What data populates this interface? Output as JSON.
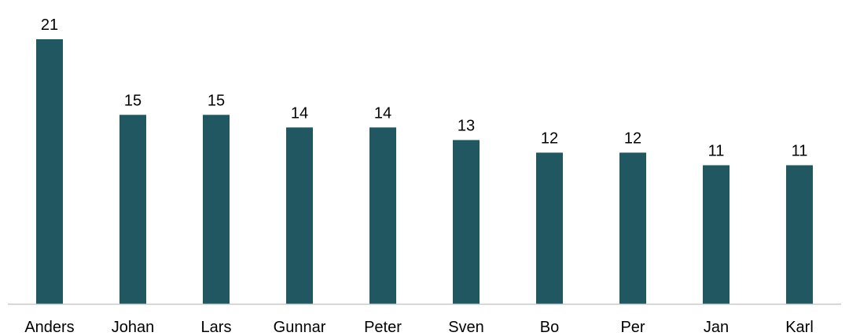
{
  "chart_data": {
    "type": "bar",
    "categories": [
      "Anders",
      "Johan",
      "Lars",
      "Gunnar",
      "Peter",
      "Sven",
      "Bo",
      "Per",
      "Jan",
      "Karl"
    ],
    "values": [
      21,
      15,
      15,
      14,
      14,
      13,
      12,
      12,
      11,
      11
    ],
    "title": "",
    "xlabel": "",
    "ylabel": "",
    "ylim": [
      0,
      21
    ],
    "grid": false,
    "data_labels": true,
    "bar_color": "#215761"
  }
}
